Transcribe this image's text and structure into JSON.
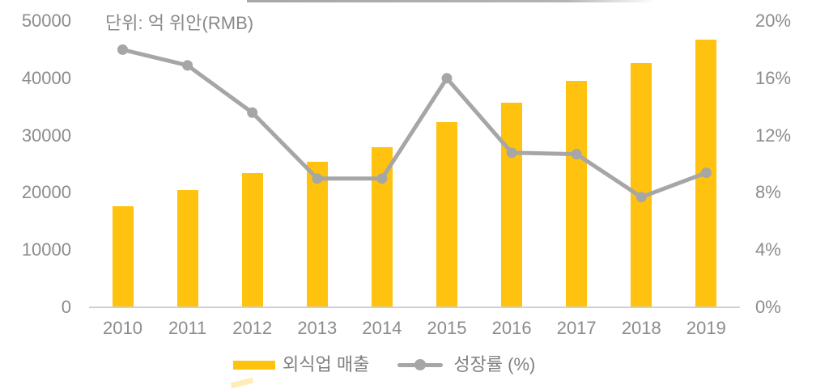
{
  "colors": {
    "bar": "#FFC20E",
    "line": "#A6A6A6",
    "axis_text": "#8C8C8C",
    "axis_line": "#D0D0D0",
    "background": "#FFFFFF"
  },
  "chart_data": {
    "type": "combo",
    "unit_label": "단위: 억 위안(RMB)",
    "categories": [
      "2010",
      "2011",
      "2012",
      "2013",
      "2014",
      "2015",
      "2016",
      "2017",
      "2018",
      "2019"
    ],
    "series": [
      {
        "name": "외식업 매출",
        "type": "bar",
        "axis": "left",
        "color": "#FFC20E",
        "values": [
          17600,
          20500,
          23400,
          25400,
          27900,
          32300,
          35800,
          39600,
          42700,
          46700
        ]
      },
      {
        "name": "성장률 (%)",
        "type": "line",
        "axis": "right",
        "color": "#A6A6A6",
        "values": [
          18.0,
          16.9,
          13.6,
          9.0,
          9.0,
          16.0,
          10.8,
          10.7,
          7.7,
          9.4
        ]
      }
    ],
    "left_axis": {
      "min": 0,
      "max": 50000,
      "tick_labels": [
        "50000",
        "40000",
        "30000",
        "20000",
        "10000",
        "0"
      ],
      "tick_values": [
        50000,
        40000,
        30000,
        20000,
        10000,
        0
      ]
    },
    "right_axis": {
      "min": 0,
      "max": 20,
      "tick_labels": [
        "20%",
        "16%",
        "12%",
        "8%",
        "4%",
        "0%"
      ],
      "tick_values": [
        20,
        16,
        12,
        8,
        4,
        0
      ]
    },
    "grid": "off",
    "legend_position": "bottom"
  }
}
